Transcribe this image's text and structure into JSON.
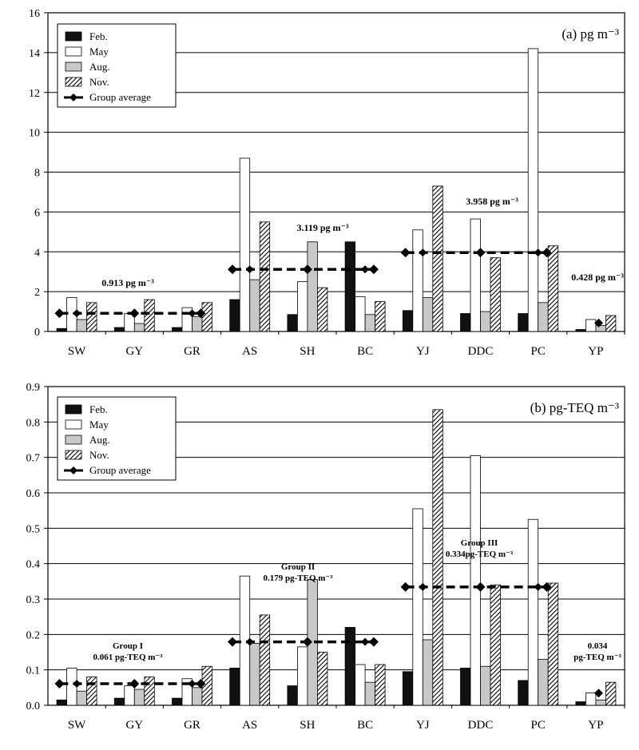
{
  "colors": {
    "feb": "#111111",
    "may": "#ffffff",
    "aug": "#c8c8c8",
    "nov": "hatch",
    "average": "#000000",
    "grid": "#000000"
  },
  "chart_data": [
    {
      "type": "bar",
      "title": "(a) pg m⁻³",
      "ylim": [
        0,
        16
      ],
      "yticks": [
        "0",
        "2",
        "4",
        "6",
        "8",
        "10",
        "12",
        "14",
        "16"
      ],
      "categories": [
        "SW",
        "GY",
        "GR",
        "AS",
        "SH",
        "BC",
        "YJ",
        "DDC",
        "PC",
        "YP"
      ],
      "legend": {
        "placement": "top-left",
        "entries": [
          "Feb.",
          "May",
          "Aug.",
          "Nov.",
          "Group average"
        ]
      },
      "series": [
        {
          "name": "Feb.",
          "values": [
            0.15,
            0.2,
            0.2,
            1.6,
            0.85,
            4.5,
            1.05,
            0.9,
            0.9,
            0.1
          ]
        },
        {
          "name": "May",
          "values": [
            1.7,
            0.9,
            1.2,
            8.7,
            2.5,
            1.75,
            5.1,
            5.65,
            14.2,
            0.6
          ]
        },
        {
          "name": "Aug.",
          "values": [
            0.6,
            0.4,
            0.75,
            2.6,
            4.5,
            0.85,
            1.7,
            1.0,
            1.45,
            0.3
          ]
        },
        {
          "name": "Nov.",
          "values": [
            1.45,
            1.6,
            1.45,
            5.5,
            2.2,
            1.5,
            7.3,
            3.7,
            4.3,
            0.8
          ]
        }
      ],
      "group_averages": [
        {
          "value": 0.913,
          "categories": [
            "SW",
            "GY",
            "GR"
          ],
          "label": "0.913 pg m⁻³"
        },
        {
          "value": 3.119,
          "categories": [
            "AS",
            "SH",
            "BC"
          ],
          "label": "3.119 pg m⁻³"
        },
        {
          "value": 3.958,
          "categories": [
            "YJ",
            "DDC",
            "PC"
          ],
          "label": "3.958 pg m⁻³"
        },
        {
          "value": 0.428,
          "categories": [
            "YP"
          ],
          "label": "0.428 pg m⁻³"
        }
      ],
      "grid": true
    },
    {
      "type": "bar",
      "title": "(b) pg-TEQ m⁻³",
      "ylim": [
        0,
        0.9
      ],
      "yticks": [
        "0.0",
        "0.1",
        "0.2",
        "0.3",
        "0.4",
        "0.5",
        "0.6",
        "0.7",
        "0.8",
        "0.9"
      ],
      "categories": [
        "SW",
        "GY",
        "GR",
        "AS",
        "SH",
        "BC",
        "YJ",
        "DDC",
        "PC",
        "YP"
      ],
      "legend": {
        "placement": "top-left",
        "entries": [
          "Feb.",
          "May",
          "Aug.",
          "Nov.",
          "Group average"
        ]
      },
      "series": [
        {
          "name": "Feb.",
          "values": [
            0.015,
            0.02,
            0.02,
            0.105,
            0.055,
            0.22,
            0.095,
            0.105,
            0.07,
            0.01
          ]
        },
        {
          "name": "May",
          "values": [
            0.105,
            0.055,
            0.075,
            0.365,
            0.165,
            0.115,
            0.555,
            0.705,
            0.525,
            0.035
          ]
        },
        {
          "name": "Aug.",
          "values": [
            0.04,
            0.045,
            0.05,
            0.175,
            0.355,
            0.065,
            0.185,
            0.11,
            0.13,
            0.015
          ]
        },
        {
          "name": "Nov.",
          "values": [
            0.08,
            0.08,
            0.11,
            0.255,
            0.15,
            0.115,
            0.835,
            0.34,
            0.345,
            0.065
          ]
        }
      ],
      "group_averages": [
        {
          "value": 0.061,
          "categories": [
            "SW",
            "GY",
            "GR"
          ],
          "label_lines": [
            "Group I",
            "0.061 pg-TEQ m⁻³"
          ]
        },
        {
          "value": 0.179,
          "categories": [
            "AS",
            "SH",
            "BC"
          ],
          "label_lines": [
            "Group II",
            "0.179 pg-TEQ m⁻³"
          ]
        },
        {
          "value": 0.334,
          "categories": [
            "YJ",
            "DDC",
            "PC"
          ],
          "label_lines": [
            "Group III",
            "0.334pg-TEQ m⁻³"
          ]
        },
        {
          "value": 0.034,
          "categories": [
            "YP"
          ],
          "label_lines": [
            "0.034",
            "pg-TEQ m⁻³"
          ]
        }
      ],
      "grid": true
    }
  ]
}
